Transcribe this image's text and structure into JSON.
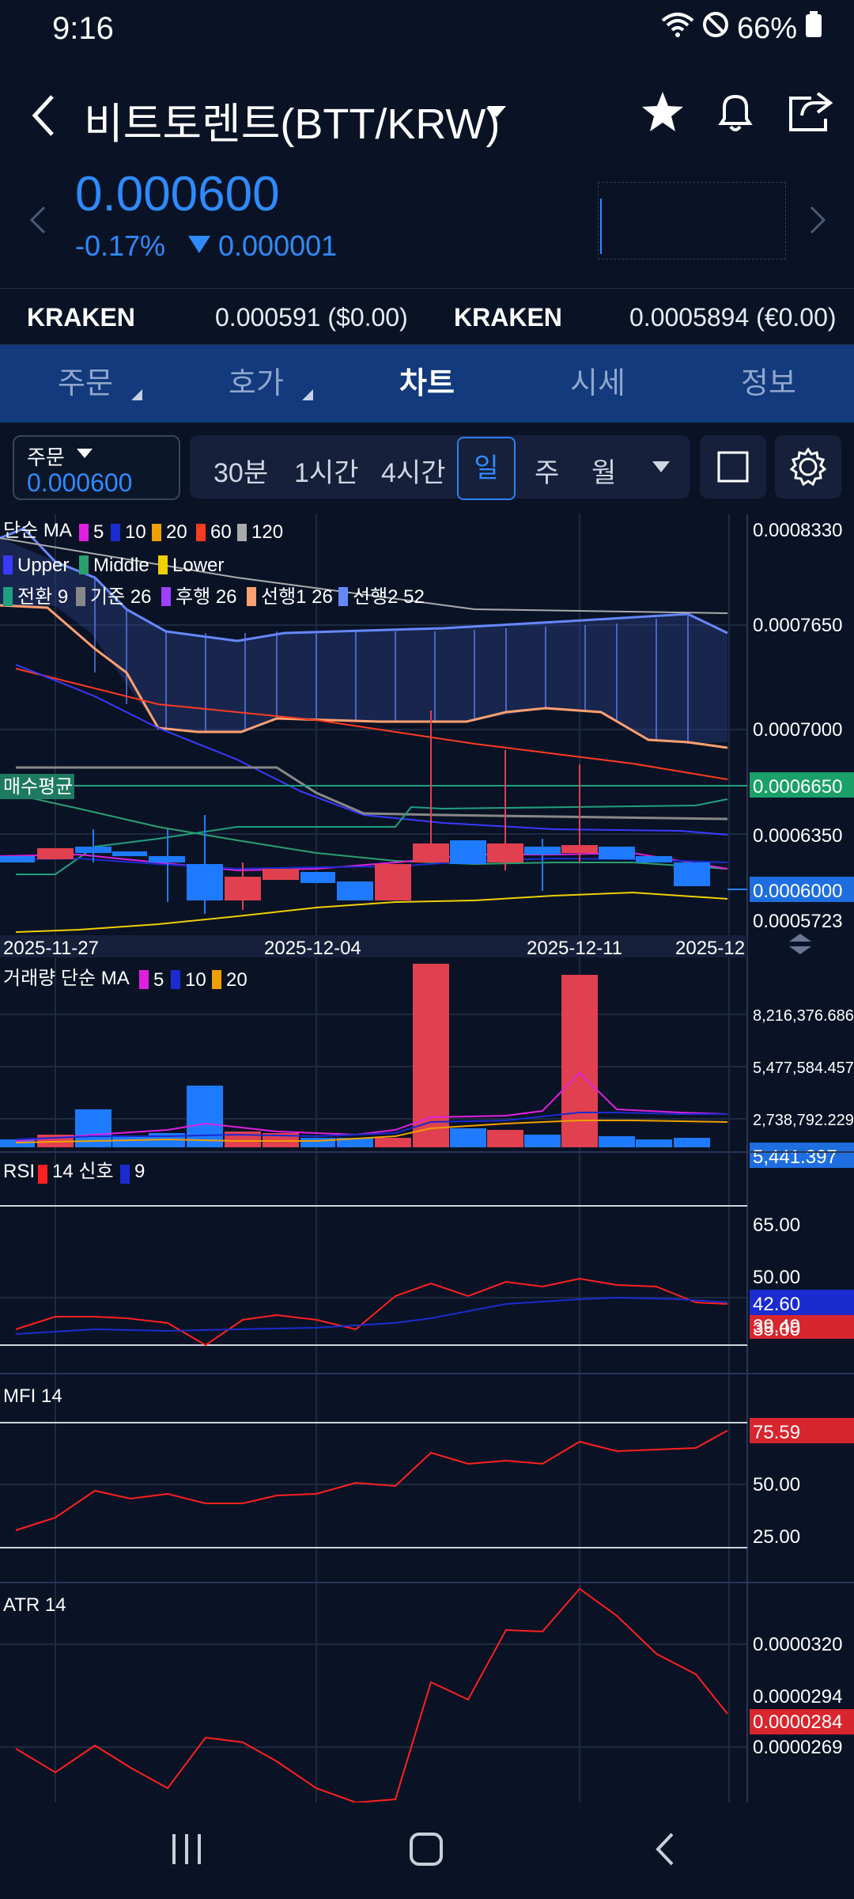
{
  "status": {
    "time": "9:16",
    "battery": "66%"
  },
  "header": {
    "title": "비트토렌트(BTT/KRW)"
  },
  "price": {
    "current": "0.000600",
    "change_pct": "-0.17%",
    "change_abs": "0.000001"
  },
  "exchanges": [
    {
      "name": "KRAKEN",
      "value": "0.000591 ($0.00)"
    },
    {
      "name": "KRAKEN",
      "value": "0.0005894 (€0.00)"
    }
  ],
  "tabs": [
    "주문",
    "호가",
    "차트",
    "시세",
    "정보"
  ],
  "active_tab": "차트",
  "order_box": {
    "label": "주문",
    "value": "0.000600"
  },
  "timeframes": [
    "30분",
    "1시간",
    "4시간",
    "일",
    "주",
    "월"
  ],
  "selected_timeframe": "일",
  "main_chart": {
    "legend1": {
      "title": "단순 MA",
      "items": [
        {
          "label": "5",
          "color": "#e020e0"
        },
        {
          "label": "10",
          "color": "#1a2ccf"
        },
        {
          "label": "20",
          "color": "#f0a000"
        },
        {
          "label": "60",
          "color": "#ff3b20"
        },
        {
          "label": "120",
          "color": "#aaaaaa"
        }
      ]
    },
    "legend2": [
      {
        "label": "Upper",
        "color": "#3a3aff"
      },
      {
        "label": "Middle",
        "color": "#2aa070"
      },
      {
        "label": "Lower",
        "color": "#f0d000"
      }
    ],
    "legend3": [
      {
        "label": "전환 9",
        "color": "#20a080"
      },
      {
        "label": "기준 26",
        "color": "#888888"
      },
      {
        "label": "후행 26",
        "color": "#a040ff"
      },
      {
        "label": "선행1 26",
        "color": "#ffa070"
      },
      {
        "label": "선행2 52",
        "color": "#6688ff"
      }
    ],
    "y_labels": [
      "0.0008330",
      "0.0007650",
      "0.0007000",
      "0.0006650",
      "0.0006350",
      "0.0006000",
      "0.0005723"
    ],
    "avg_label": "매수평균",
    "avg_price": "0.0006650",
    "current_price_label": "0.0006000",
    "x_labels": [
      "2025-11-27",
      "2025-12-04",
      "2025-12-11",
      "2025-12"
    ]
  },
  "volume_chart": {
    "legend_title": "거래량 단순 MA",
    "legend": [
      {
        "label": "5",
        "color": "#e020e0"
      },
      {
        "label": "10",
        "color": "#1a2ccf"
      },
      {
        "label": "20",
        "color": "#f0a000"
      }
    ],
    "y_labels": [
      "8,216,376.686",
      "5,477,584.457",
      "2,738,792.229"
    ],
    "current_label": "5,441.397"
  },
  "rsi_chart": {
    "legend": [
      {
        "label": "RSI",
        "color": "#ff2020",
        "text": "14 신호"
      },
      {
        "label": "9",
        "color": "#1a2ccf"
      }
    ],
    "y_labels": [
      "65.00",
      "50.00",
      "35.00"
    ],
    "current_blue": "42.60",
    "current_red": "39.49"
  },
  "mfi_chart": {
    "title": "MFI 14",
    "y_labels": [
      "50.00",
      "25.00"
    ],
    "current": "75.59"
  },
  "atr_chart": {
    "title": "ATR 14",
    "y_labels": [
      "0.0000320",
      "0.0000294",
      "0.0000269"
    ],
    "current": "0.0000284"
  }
}
